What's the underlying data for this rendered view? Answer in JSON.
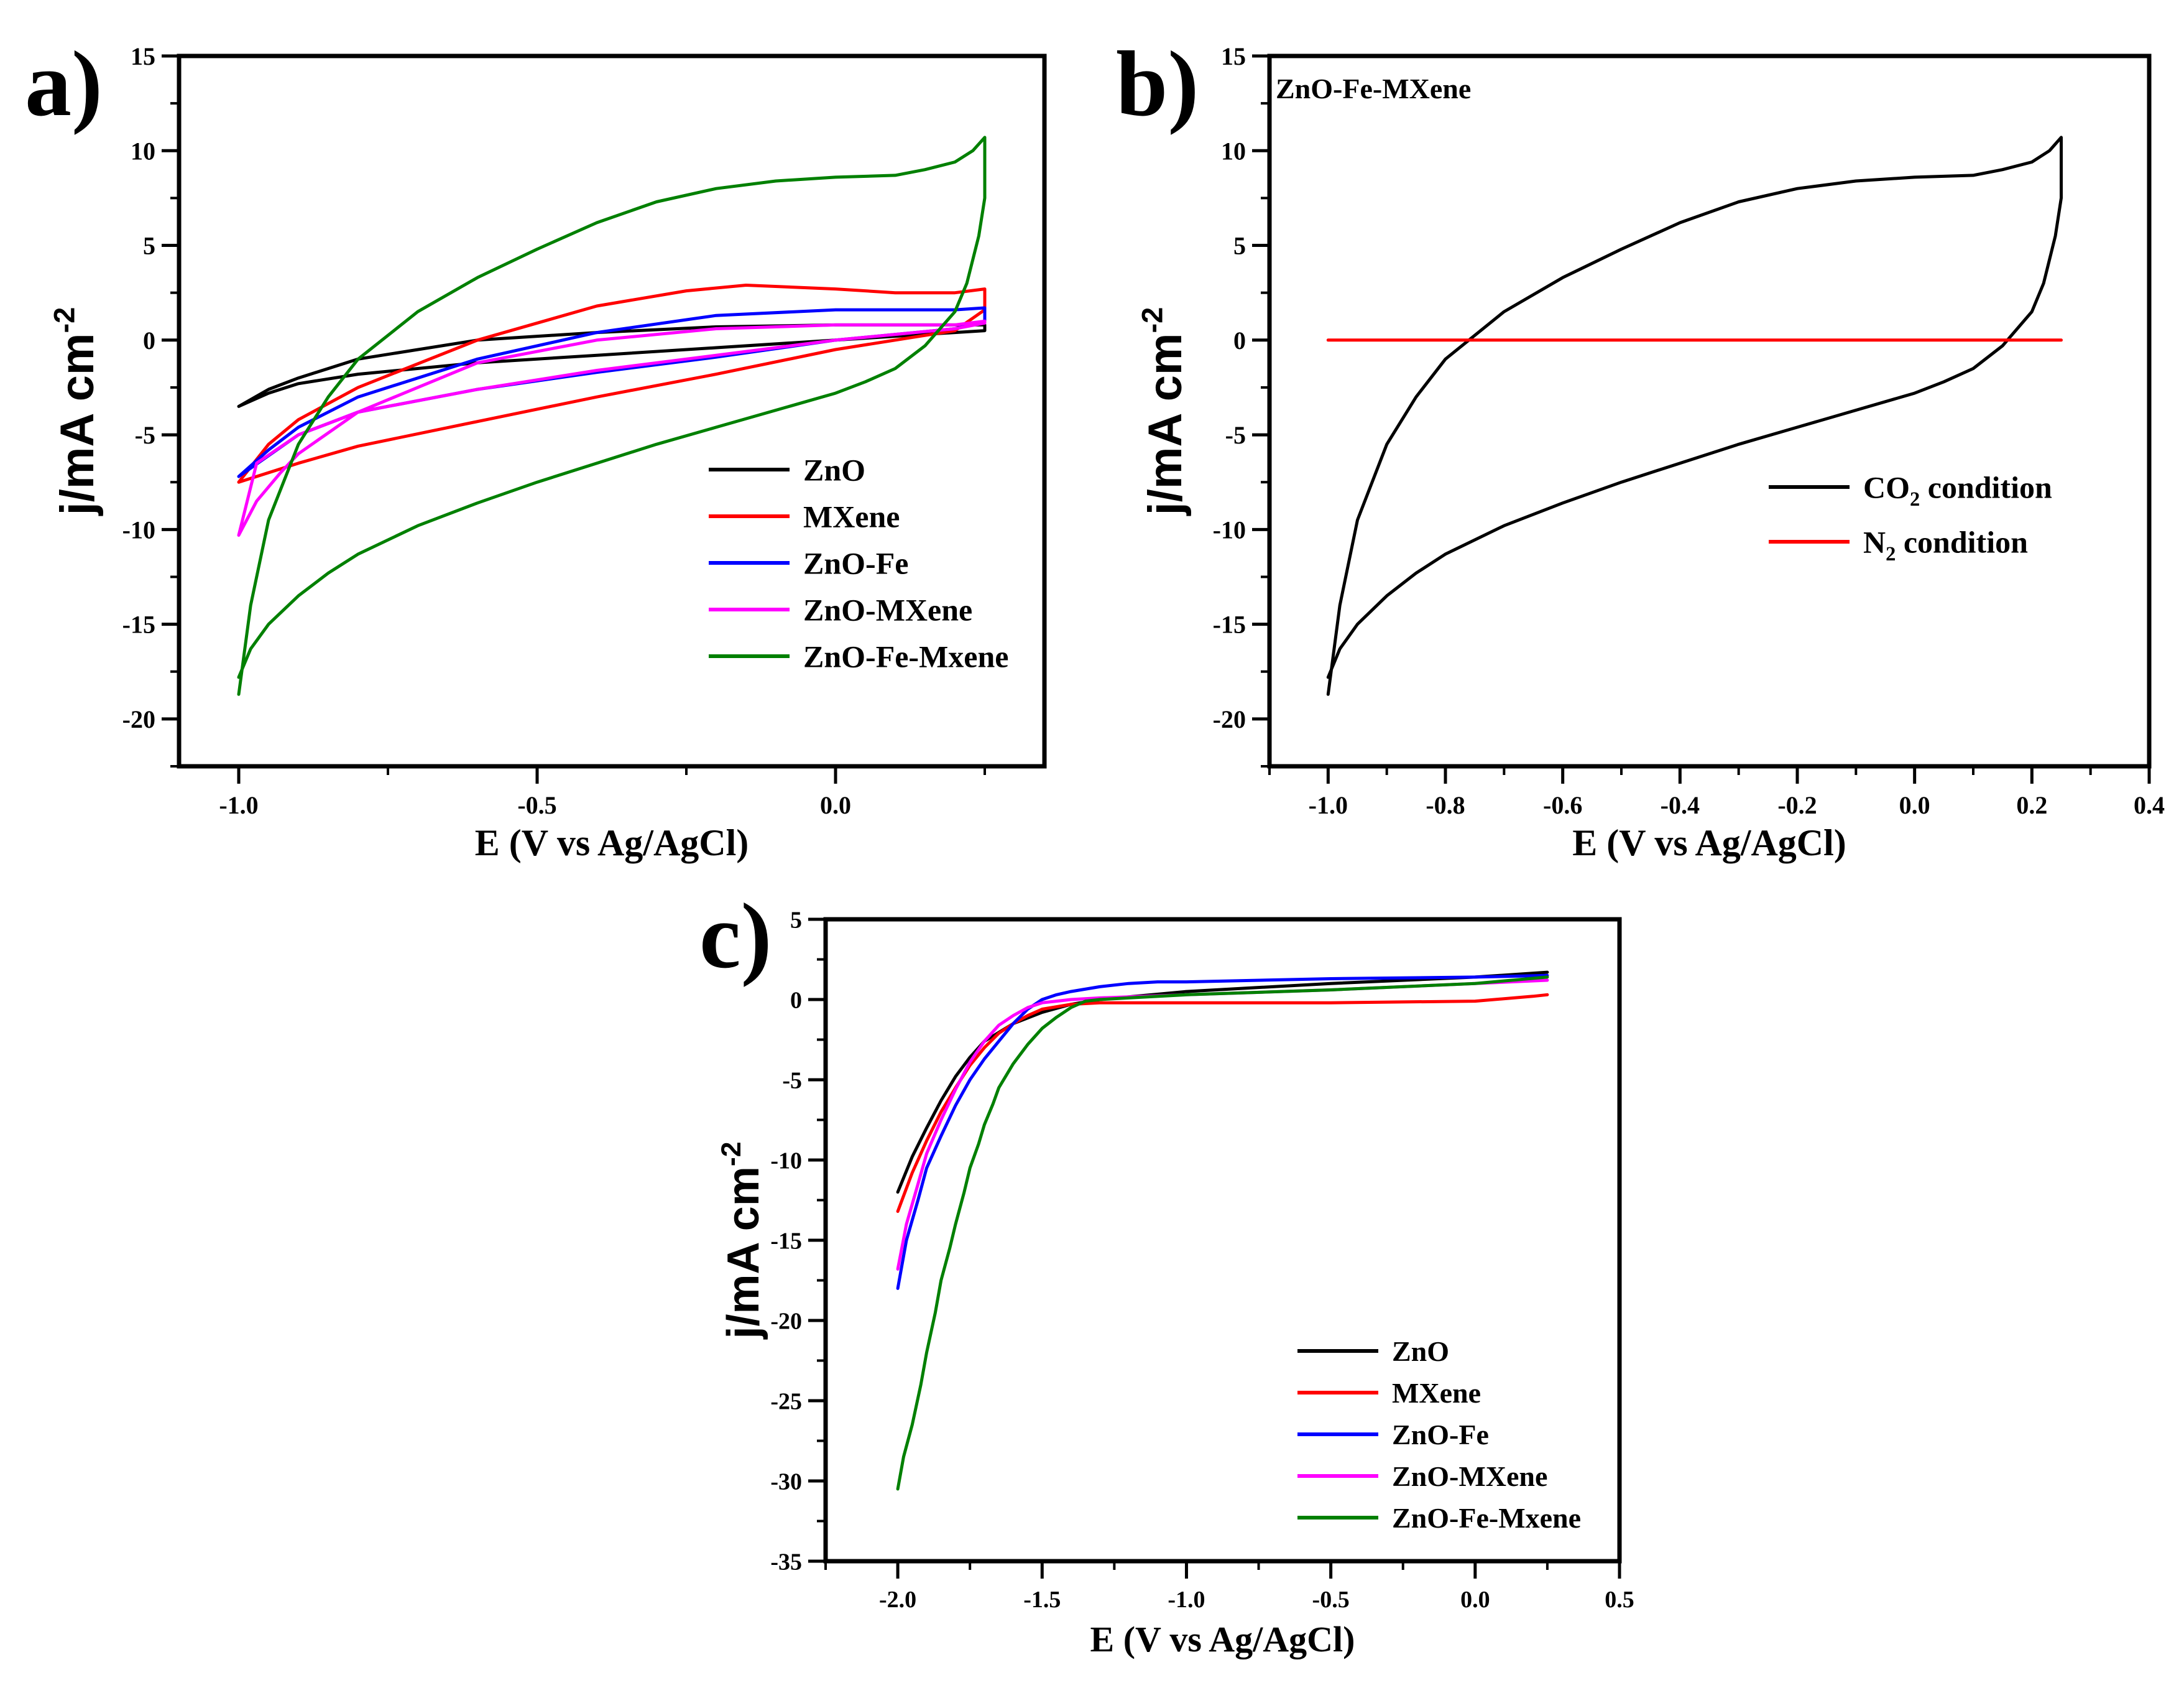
{
  "figure": {
    "panels": [
      {
        "id": "a",
        "label": "a)"
      },
      {
        "id": "b",
        "label": "b)"
      },
      {
        "id": "c",
        "label": "c)"
      }
    ]
  },
  "colors": {
    "ZnO": "#000000",
    "MXene": "#ff0000",
    "ZnO-Fe": "#0000ff",
    "ZnO-MXene": "#ff00ff",
    "ZnO-Fe-Mxene": "#008000"
  },
  "chart_data": [
    {
      "panel": "a",
      "type": "line",
      "xlabel": "E (V vs Ag/AgCl)",
      "ylabel_main": "j/mA cm",
      "ylabel_sup": "-2",
      "xlim": [
        -1.1,
        0.35
      ],
      "ylim": [
        -22.5,
        15
      ],
      "xticks": [
        -1.0,
        -0.5,
        0.0
      ],
      "xtick_labels": [
        "-1.0",
        "-0.5",
        "0.0"
      ],
      "yticks": [
        15,
        10,
        5,
        0,
        -5,
        -10,
        -15,
        -20
      ],
      "ytick_labels": [
        "15",
        "10",
        "5",
        "0",
        "-5",
        "-10",
        "-15",
        "-20"
      ],
      "legend": {
        "position": "bottom-right",
        "entries": [
          {
            "label": "ZnO",
            "color": "#000000"
          },
          {
            "label": "MXene",
            "color": "#ff0000"
          },
          {
            "label": "ZnO-Fe",
            "color": "#0000ff"
          },
          {
            "label": "ZnO-MXene",
            "color": "#ff00ff"
          },
          {
            "label": "ZnO-Fe-Mxene",
            "color": "#008000"
          }
        ]
      },
      "series": [
        {
          "name": "ZnO",
          "color": "#000000",
          "x": [
            -1.0,
            -0.95,
            -0.9,
            -0.8,
            -0.6,
            -0.4,
            -0.2,
            0.0,
            0.15,
            0.25,
            0.25,
            0.2,
            0.0,
            -0.2,
            -0.4,
            -0.6,
            -0.8,
            -0.9,
            -0.95,
            -1.0
          ],
          "y": [
            -3.5,
            -2.6,
            -2.0,
            -1.0,
            0.0,
            0.4,
            0.7,
            0.8,
            0.8,
            0.8,
            0.5,
            0.4,
            0.0,
            -0.4,
            -0.8,
            -1.2,
            -1.8,
            -2.3,
            -2.8,
            -3.5
          ]
        },
        {
          "name": "MXene",
          "color": "#ff0000",
          "x": [
            -1.0,
            -0.95,
            -0.9,
            -0.8,
            -0.6,
            -0.4,
            -0.25,
            -0.15,
            0.0,
            0.1,
            0.2,
            0.25,
            0.25,
            0.2,
            0.1,
            0.0,
            -0.2,
            -0.4,
            -0.6,
            -0.8,
            -0.9,
            -1.0
          ],
          "y": [
            -7.5,
            -5.5,
            -4.2,
            -2.5,
            0.0,
            1.8,
            2.6,
            2.9,
            2.7,
            2.5,
            2.5,
            2.7,
            1.6,
            0.5,
            0.0,
            -0.5,
            -1.8,
            -3.0,
            -4.3,
            -5.6,
            -6.5,
            -7.5
          ]
        },
        {
          "name": "ZnO-Fe",
          "color": "#0000ff",
          "x": [
            -1.0,
            -0.95,
            -0.9,
            -0.8,
            -0.6,
            -0.4,
            -0.2,
            0.0,
            0.2,
            0.25,
            0.25,
            0.2,
            0.0,
            -0.2,
            -0.4,
            -0.6,
            -0.8,
            -0.9,
            -1.0
          ],
          "y": [
            -7.2,
            -5.8,
            -4.6,
            -3.0,
            -1.0,
            0.4,
            1.3,
            1.6,
            1.6,
            1.7,
            1.0,
            0.6,
            0.0,
            -0.9,
            -1.7,
            -2.6,
            -3.8,
            -5.0,
            -7.2
          ]
        },
        {
          "name": "ZnO-MXene",
          "color": "#ff00ff",
          "x": [
            -1.0,
            -0.97,
            -0.93,
            -0.9,
            -0.8,
            -0.6,
            -0.4,
            -0.2,
            0.0,
            0.2,
            0.25,
            0.25,
            0.2,
            0.0,
            -0.2,
            -0.4,
            -0.6,
            -0.8,
            -0.9,
            -0.97,
            -1.0
          ],
          "y": [
            -10.3,
            -8.5,
            -7.0,
            -6.0,
            -3.8,
            -1.2,
            0.0,
            0.6,
            0.8,
            0.8,
            1.0,
            0.9,
            0.6,
            0.0,
            -0.8,
            -1.6,
            -2.6,
            -3.8,
            -5.0,
            -6.5,
            -10.3
          ]
        },
        {
          "name": "ZnO-Fe-Mxene",
          "color": "#008000",
          "x": [
            -1.0,
            -0.98,
            -0.95,
            -0.9,
            -0.85,
            -0.8,
            -0.7,
            -0.6,
            -0.5,
            -0.4,
            -0.3,
            -0.2,
            -0.1,
            0.0,
            0.1,
            0.15,
            0.2,
            0.23,
            0.25,
            0.25,
            0.24,
            0.22,
            0.2,
            0.15,
            0.1,
            0.05,
            0.0,
            -0.1,
            -0.2,
            -0.3,
            -0.4,
            -0.5,
            -0.6,
            -0.7,
            -0.8,
            -0.85,
            -0.9,
            -0.95,
            -0.98,
            -1.0
          ],
          "y": [
            -18.7,
            -14.0,
            -9.5,
            -5.5,
            -3.0,
            -1.0,
            1.5,
            3.3,
            4.8,
            6.2,
            7.3,
            8.0,
            8.4,
            8.6,
            8.7,
            9.0,
            9.4,
            10.0,
            10.7,
            7.5,
            5.5,
            3.0,
            1.5,
            -0.3,
            -1.5,
            -2.2,
            -2.8,
            -3.7,
            -4.6,
            -5.5,
            -6.5,
            -7.5,
            -8.6,
            -9.8,
            -11.3,
            -12.3,
            -13.5,
            -15.0,
            -16.3,
            -17.8
          ]
        }
      ]
    },
    {
      "panel": "b",
      "type": "line",
      "title": "ZnO-Fe-MXene",
      "xlabel": "E (V vs Ag/AgCl)",
      "ylabel_main": "j/mA cm",
      "ylabel_sup": "-2",
      "xlim": [
        -1.1,
        0.4
      ],
      "ylim": [
        -22.5,
        15
      ],
      "xticks": [
        -1.0,
        -0.8,
        -0.6,
        -0.4,
        -0.2,
        0.0,
        0.2,
        0.4
      ],
      "xtick_labels": [
        "-1.0",
        "-0.8",
        "-0.6",
        "-0.4",
        "-0.2",
        "0.0",
        "0.2",
        "0.4"
      ],
      "yticks": [
        15,
        10,
        5,
        0,
        -5,
        -10,
        -15,
        -20
      ],
      "ytick_labels": [
        "15",
        "10",
        "5",
        "0",
        "-5",
        "-10",
        "-15",
        "-20"
      ],
      "legend": {
        "position": "right",
        "entries": [
          {
            "label_main": "CO",
            "label_sub": "2",
            "label_rest": " condition",
            "color": "#000000"
          },
          {
            "label_main": "N",
            "label_sub": "2",
            "label_rest": " condition",
            "color": "#ff0000"
          }
        ]
      },
      "series": [
        {
          "name": "CO2 condition",
          "color": "#000000",
          "x": [
            -1.0,
            -0.98,
            -0.95,
            -0.9,
            -0.85,
            -0.8,
            -0.7,
            -0.6,
            -0.5,
            -0.4,
            -0.3,
            -0.2,
            -0.1,
            0.0,
            0.1,
            0.15,
            0.2,
            0.23,
            0.25,
            0.25,
            0.24,
            0.22,
            0.2,
            0.15,
            0.1,
            0.05,
            0.0,
            -0.1,
            -0.2,
            -0.3,
            -0.4,
            -0.5,
            -0.6,
            -0.7,
            -0.8,
            -0.85,
            -0.9,
            -0.95,
            -0.98,
            -1.0
          ],
          "y": [
            -18.7,
            -14.0,
            -9.5,
            -5.5,
            -3.0,
            -1.0,
            1.5,
            3.3,
            4.8,
            6.2,
            7.3,
            8.0,
            8.4,
            8.6,
            8.7,
            9.0,
            9.4,
            10.0,
            10.7,
            7.5,
            5.5,
            3.0,
            1.5,
            -0.3,
            -1.5,
            -2.2,
            -2.8,
            -3.7,
            -4.6,
            -5.5,
            -6.5,
            -7.5,
            -8.6,
            -9.8,
            -11.3,
            -12.3,
            -13.5,
            -15.0,
            -16.3,
            -17.8
          ]
        },
        {
          "name": "N2 condition",
          "color": "#ff0000",
          "x": [
            -1.0,
            0.25
          ],
          "y": [
            0.0,
            0.0
          ]
        }
      ]
    },
    {
      "panel": "c",
      "type": "line",
      "xlabel": "E (V vs Ag/AgCl)",
      "ylabel_main": "j/mA cm",
      "ylabel_sup": "-2",
      "xlim": [
        -2.25,
        0.5
      ],
      "ylim": [
        -35,
        5
      ],
      "xticks": [
        -2.0,
        -1.5,
        -1.0,
        -0.5,
        0.0,
        0.5
      ],
      "xtick_labels": [
        "-2.0",
        "-1.5",
        "-1.0",
        "-0.5",
        "0.0",
        "0.5"
      ],
      "yticks": [
        5,
        0,
        -5,
        -10,
        -15,
        -20,
        -25,
        -30,
        -35
      ],
      "ytick_labels": [
        "5",
        "0",
        "-5",
        "-10",
        "-15",
        "-20",
        "-25",
        "-30",
        "-35"
      ],
      "legend": {
        "position": "bottom-right",
        "entries": [
          {
            "label": "ZnO",
            "color": "#000000"
          },
          {
            "label": "MXene",
            "color": "#ff0000"
          },
          {
            "label": "ZnO-Fe",
            "color": "#0000ff"
          },
          {
            "label": "ZnO-MXene",
            "color": "#ff00ff"
          },
          {
            "label": "ZnO-Fe-Mxene",
            "color": "#008000"
          }
        ]
      },
      "series": [
        {
          "name": "ZnO",
          "color": "#000000",
          "x": [
            -2.0,
            -1.95,
            -1.9,
            -1.85,
            -1.8,
            -1.75,
            -1.7,
            -1.6,
            -1.5,
            -1.4,
            -1.3,
            -1.0,
            -0.5,
            0.0,
            0.25
          ],
          "y": [
            -12.0,
            -9.8,
            -8.0,
            -6.3,
            -4.8,
            -3.6,
            -2.6,
            -1.5,
            -0.8,
            -0.3,
            0.0,
            0.5,
            1.0,
            1.4,
            1.7
          ]
        },
        {
          "name": "MXene",
          "color": "#ff0000",
          "x": [
            -2.0,
            -1.95,
            -1.9,
            -1.85,
            -1.8,
            -1.75,
            -1.7,
            -1.65,
            -1.6,
            -1.55,
            -1.5,
            -1.4,
            -1.3,
            -1.0,
            -0.5,
            0.0,
            0.2,
            0.25
          ],
          "y": [
            -13.2,
            -10.8,
            -8.8,
            -7.0,
            -5.5,
            -4.1,
            -3.0,
            -2.1,
            -1.5,
            -1.0,
            -0.6,
            -0.3,
            -0.2,
            -0.2,
            -0.2,
            -0.1,
            0.2,
            0.3
          ]
        },
        {
          "name": "ZnO-Fe",
          "color": "#0000ff",
          "x": [
            -2.0,
            -1.97,
            -1.93,
            -1.9,
            -1.85,
            -1.8,
            -1.75,
            -1.7,
            -1.65,
            -1.6,
            -1.55,
            -1.5,
            -1.45,
            -1.4,
            -1.3,
            -1.2,
            -1.1,
            -1.0,
            -0.5,
            0.0,
            0.25
          ],
          "y": [
            -18.0,
            -15.0,
            -12.5,
            -10.5,
            -8.5,
            -6.6,
            -5.0,
            -3.7,
            -2.6,
            -1.5,
            -0.6,
            0.0,
            0.3,
            0.5,
            0.8,
            1.0,
            1.1,
            1.1,
            1.3,
            1.4,
            1.5
          ]
        },
        {
          "name": "ZnO-MXene",
          "color": "#ff00ff",
          "x": [
            -2.0,
            -1.97,
            -1.93,
            -1.9,
            -1.85,
            -1.8,
            -1.75,
            -1.7,
            -1.65,
            -1.6,
            -1.55,
            -1.5,
            -1.45,
            -1.4,
            -1.3,
            -1.0,
            -0.5,
            0.0,
            0.25
          ],
          "y": [
            -16.8,
            -14.0,
            -11.5,
            -9.6,
            -7.5,
            -5.6,
            -3.9,
            -2.6,
            -1.6,
            -1.0,
            -0.5,
            -0.2,
            -0.1,
            0.0,
            0.1,
            0.3,
            0.6,
            1.0,
            1.2
          ]
        },
        {
          "name": "ZnO-Fe-Mxene",
          "color": "#008000",
          "x": [
            -2.0,
            -1.98,
            -1.95,
            -1.92,
            -1.9,
            -1.87,
            -1.85,
            -1.82,
            -1.8,
            -1.77,
            -1.75,
            -1.72,
            -1.7,
            -1.67,
            -1.65,
            -1.6,
            -1.55,
            -1.5,
            -1.45,
            -1.4,
            -1.35,
            -1.3,
            -1.2,
            -1.0,
            -0.5,
            0.0,
            0.25
          ],
          "y": [
            -30.5,
            -28.5,
            -26.5,
            -24.0,
            -22.0,
            -19.5,
            -17.5,
            -15.5,
            -14.0,
            -12.0,
            -10.5,
            -9.0,
            -7.8,
            -6.5,
            -5.5,
            -4.0,
            -2.8,
            -1.8,
            -1.1,
            -0.5,
            -0.1,
            0.0,
            0.1,
            0.3,
            0.6,
            1.0,
            1.4
          ]
        }
      ]
    }
  ]
}
